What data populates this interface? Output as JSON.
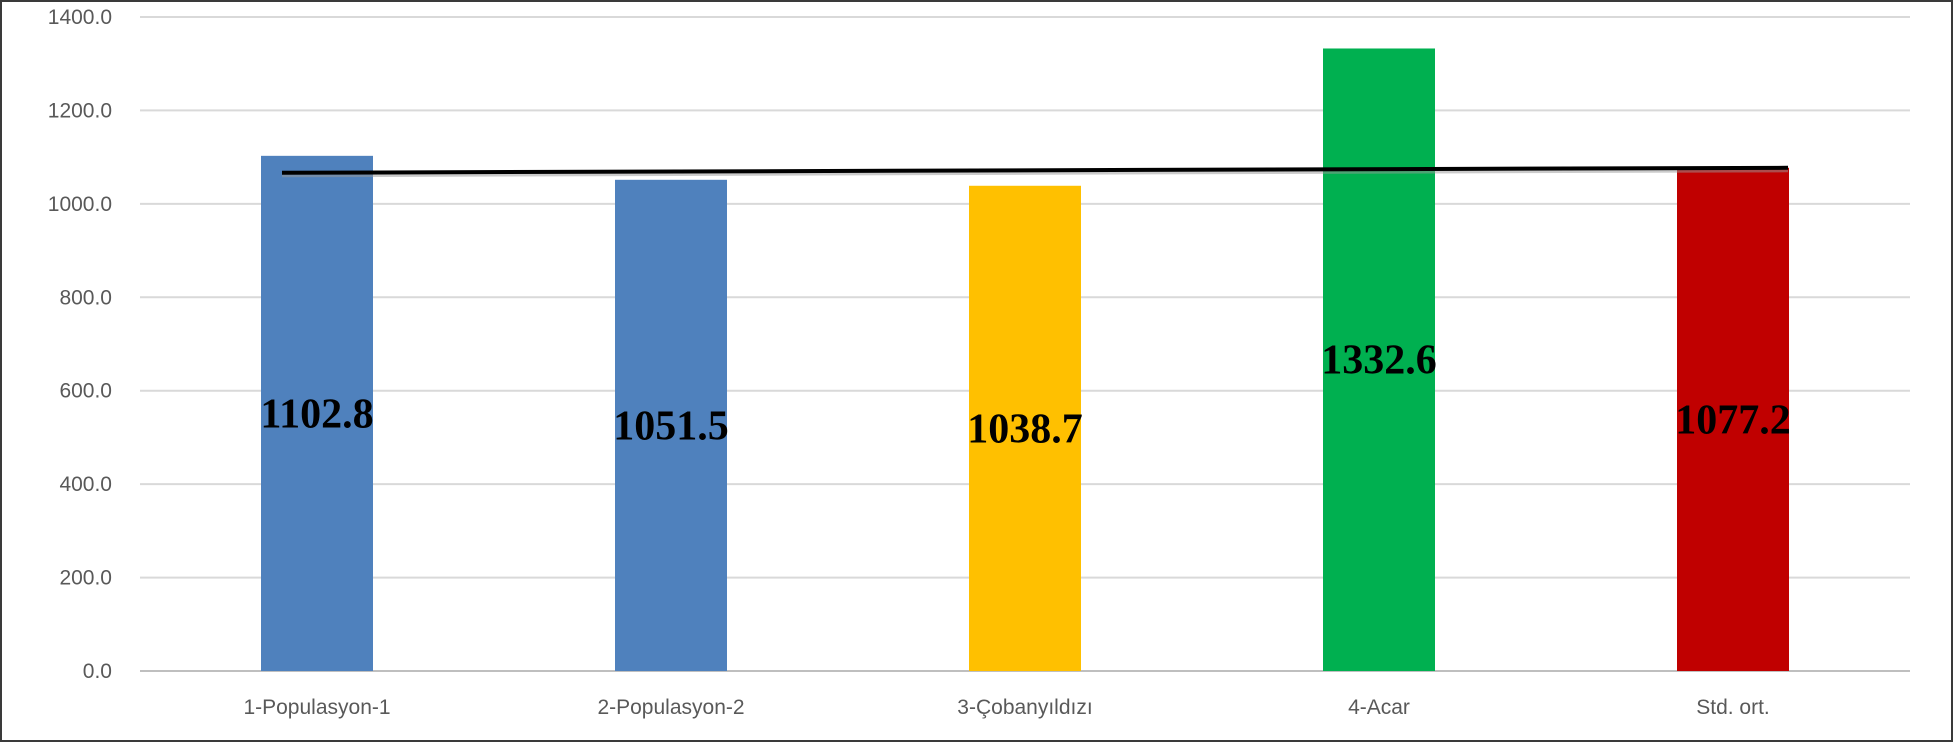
{
  "chart_data": {
    "type": "bar",
    "categories": [
      "1-Populasyon-1",
      "2-Populasyon-2",
      "3-Çobanyıldızı",
      "4-Acar",
      "Std. ort."
    ],
    "values": [
      1102.8,
      1051.5,
      1038.7,
      1332.6,
      1077.2
    ],
    "data_labels": [
      "1102.8",
      "1051.5",
      "1038.7",
      "1332.6",
      "1077.2"
    ],
    "bar_colors": [
      "#4f81bd",
      "#4f81bd",
      "#ffc000",
      "#00b050",
      "#c00000"
    ],
    "reference_line": {
      "value": 1077.2,
      "color": "#000000"
    },
    "ylim": [
      0,
      1400
    ],
    "yticks": [
      "0.0",
      "200.0",
      "400.0",
      "600.0",
      "800.0",
      "1000.0",
      "1200.0",
      "1400.0"
    ],
    "grid": true,
    "title": "",
    "xlabel": "",
    "ylabel": ""
  }
}
